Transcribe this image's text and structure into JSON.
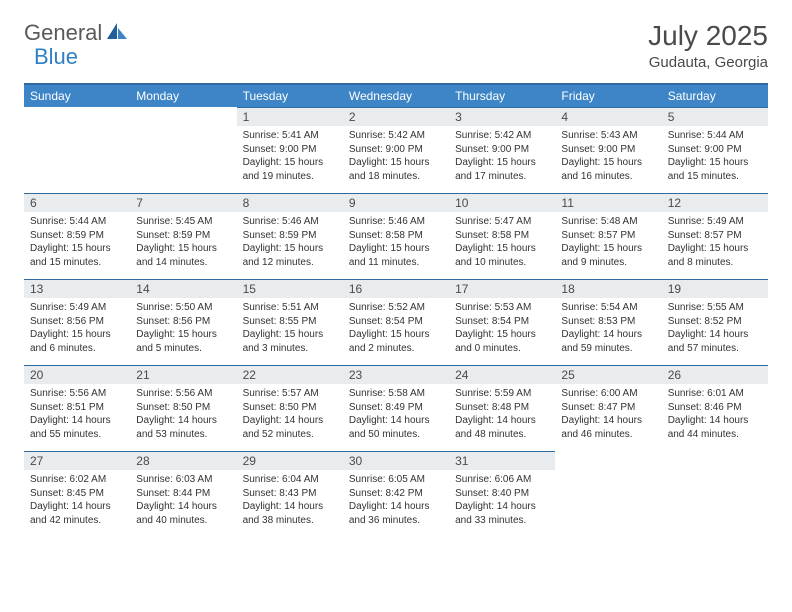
{
  "logo": {
    "part1": "General",
    "part2": "Blue"
  },
  "title": "July 2025",
  "location": "Gudauta, Georgia",
  "colors": {
    "header_bg": "#3d85c6",
    "header_border": "#2f6aa0",
    "daynum_bg": "#e8ecef",
    "text": "#333333",
    "logo_gray": "#5a5a5a",
    "logo_blue": "#2f7fc2"
  },
  "weekdays": [
    "Sunday",
    "Monday",
    "Tuesday",
    "Wednesday",
    "Thursday",
    "Friday",
    "Saturday"
  ],
  "weeks": [
    [
      null,
      null,
      {
        "n": "1",
        "sr": "5:41 AM",
        "ss": "9:00 PM",
        "dl": "15 hours and 19 minutes."
      },
      {
        "n": "2",
        "sr": "5:42 AM",
        "ss": "9:00 PM",
        "dl": "15 hours and 18 minutes."
      },
      {
        "n": "3",
        "sr": "5:42 AM",
        "ss": "9:00 PM",
        "dl": "15 hours and 17 minutes."
      },
      {
        "n": "4",
        "sr": "5:43 AM",
        "ss": "9:00 PM",
        "dl": "15 hours and 16 minutes."
      },
      {
        "n": "5",
        "sr": "5:44 AM",
        "ss": "9:00 PM",
        "dl": "15 hours and 15 minutes."
      }
    ],
    [
      {
        "n": "6",
        "sr": "5:44 AM",
        "ss": "8:59 PM",
        "dl": "15 hours and 15 minutes."
      },
      {
        "n": "7",
        "sr": "5:45 AM",
        "ss": "8:59 PM",
        "dl": "15 hours and 14 minutes."
      },
      {
        "n": "8",
        "sr": "5:46 AM",
        "ss": "8:59 PM",
        "dl": "15 hours and 12 minutes."
      },
      {
        "n": "9",
        "sr": "5:46 AM",
        "ss": "8:58 PM",
        "dl": "15 hours and 11 minutes."
      },
      {
        "n": "10",
        "sr": "5:47 AM",
        "ss": "8:58 PM",
        "dl": "15 hours and 10 minutes."
      },
      {
        "n": "11",
        "sr": "5:48 AM",
        "ss": "8:57 PM",
        "dl": "15 hours and 9 minutes."
      },
      {
        "n": "12",
        "sr": "5:49 AM",
        "ss": "8:57 PM",
        "dl": "15 hours and 8 minutes."
      }
    ],
    [
      {
        "n": "13",
        "sr": "5:49 AM",
        "ss": "8:56 PM",
        "dl": "15 hours and 6 minutes."
      },
      {
        "n": "14",
        "sr": "5:50 AM",
        "ss": "8:56 PM",
        "dl": "15 hours and 5 minutes."
      },
      {
        "n": "15",
        "sr": "5:51 AM",
        "ss": "8:55 PM",
        "dl": "15 hours and 3 minutes."
      },
      {
        "n": "16",
        "sr": "5:52 AM",
        "ss": "8:54 PM",
        "dl": "15 hours and 2 minutes."
      },
      {
        "n": "17",
        "sr": "5:53 AM",
        "ss": "8:54 PM",
        "dl": "15 hours and 0 minutes."
      },
      {
        "n": "18",
        "sr": "5:54 AM",
        "ss": "8:53 PM",
        "dl": "14 hours and 59 minutes."
      },
      {
        "n": "19",
        "sr": "5:55 AM",
        "ss": "8:52 PM",
        "dl": "14 hours and 57 minutes."
      }
    ],
    [
      {
        "n": "20",
        "sr": "5:56 AM",
        "ss": "8:51 PM",
        "dl": "14 hours and 55 minutes."
      },
      {
        "n": "21",
        "sr": "5:56 AM",
        "ss": "8:50 PM",
        "dl": "14 hours and 53 minutes."
      },
      {
        "n": "22",
        "sr": "5:57 AM",
        "ss": "8:50 PM",
        "dl": "14 hours and 52 minutes."
      },
      {
        "n": "23",
        "sr": "5:58 AM",
        "ss": "8:49 PM",
        "dl": "14 hours and 50 minutes."
      },
      {
        "n": "24",
        "sr": "5:59 AM",
        "ss": "8:48 PM",
        "dl": "14 hours and 48 minutes."
      },
      {
        "n": "25",
        "sr": "6:00 AM",
        "ss": "8:47 PM",
        "dl": "14 hours and 46 minutes."
      },
      {
        "n": "26",
        "sr": "6:01 AM",
        "ss": "8:46 PM",
        "dl": "14 hours and 44 minutes."
      }
    ],
    [
      {
        "n": "27",
        "sr": "6:02 AM",
        "ss": "8:45 PM",
        "dl": "14 hours and 42 minutes."
      },
      {
        "n": "28",
        "sr": "6:03 AM",
        "ss": "8:44 PM",
        "dl": "14 hours and 40 minutes."
      },
      {
        "n": "29",
        "sr": "6:04 AM",
        "ss": "8:43 PM",
        "dl": "14 hours and 38 minutes."
      },
      {
        "n": "30",
        "sr": "6:05 AM",
        "ss": "8:42 PM",
        "dl": "14 hours and 36 minutes."
      },
      {
        "n": "31",
        "sr": "6:06 AM",
        "ss": "8:40 PM",
        "dl": "14 hours and 33 minutes."
      },
      null,
      null
    ]
  ]
}
